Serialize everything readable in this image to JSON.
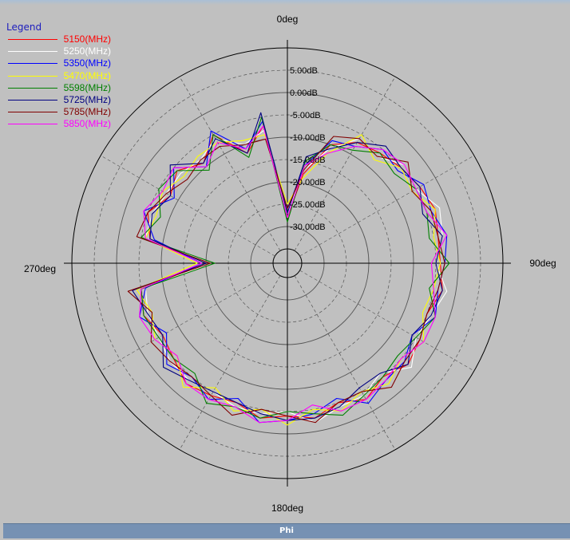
{
  "chart_data": {
    "type": "polar-line",
    "legend_title": "Legend",
    "legend_position": "top-left",
    "grid": true,
    "angle_labels": [
      "0deg",
      "90deg",
      "180deg",
      "270deg"
    ],
    "radial_labels": [
      "5.00dB",
      "0.00dB",
      "-5.00dB",
      "-10.00dB",
      "-15.00dB",
      "-20.00dB",
      "-25.00dB",
      "-30.00dB"
    ],
    "r_range_db": [
      -35,
      10
    ],
    "angles_deg": [
      0,
      10,
      20,
      30,
      40,
      50,
      60,
      70,
      80,
      90,
      100,
      110,
      120,
      130,
      140,
      150,
      160,
      170,
      180,
      190,
      200,
      210,
      220,
      230,
      240,
      250,
      260,
      270,
      280,
      290,
      300,
      310,
      320,
      330,
      340,
      350
    ],
    "series": [
      {
        "name": "5150(MHz)",
        "color": "#ff0000",
        "values": [
          -28,
          -18,
          -10,
          -7,
          -6,
          -5,
          -4,
          -3,
          -4,
          -4,
          -3,
          -5,
          -4,
          -3,
          -5,
          -3,
          -5,
          -3,
          -4,
          -3,
          -5,
          -4,
          -3,
          -5,
          -6,
          -4,
          -5,
          -20,
          -7,
          -5,
          -8,
          -6,
          -9,
          -5,
          -12,
          -7
        ]
      },
      {
        "name": "5250(MHz)",
        "color": "#ffffff",
        "values": [
          -27,
          -17,
          -11,
          -6,
          -7,
          -4,
          -5,
          -2,
          -3,
          -5,
          -2,
          -4,
          -5,
          -2,
          -6,
          -4,
          -4,
          -2,
          -5,
          -4,
          -4,
          -5,
          -4,
          -4,
          -5,
          -5,
          -6,
          -21,
          -6,
          -6,
          -7,
          -7,
          -8,
          -6,
          -10,
          -8
        ]
      },
      {
        "name": "5350(MHz)",
        "color": "#0000ff",
        "values": [
          -26,
          -16,
          -9,
          -8,
          -5,
          -6,
          -3,
          -4,
          -2,
          -3,
          -4,
          -3,
          -6,
          -4,
          -4,
          -2,
          -6,
          -4,
          -3,
          -2,
          -6,
          -3,
          -5,
          -3,
          -7,
          -3,
          -6,
          -19,
          -8,
          -4,
          -9,
          -5,
          -10,
          -4,
          -11,
          -6
        ]
      },
      {
        "name": "5470(MHz)",
        "color": "#ffff00",
        "values": [
          -25,
          -19,
          -12,
          -5,
          -8,
          -5,
          -6,
          -3,
          -5,
          -4,
          -5,
          -6,
          -3,
          -5,
          -3,
          -5,
          -3,
          -5,
          -2,
          -5,
          -3,
          -6,
          -2,
          -6,
          -4,
          -6,
          -4,
          -18,
          -6,
          -7,
          -6,
          -8,
          -7,
          -7,
          -9,
          -9
        ]
      },
      {
        "name": "5598(MHz)",
        "color": "#008000",
        "values": [
          -29,
          -15,
          -10,
          -9,
          -6,
          -7,
          -5,
          -5,
          -6,
          -2,
          -6,
          -3,
          -5,
          -6,
          -5,
          -4,
          -2,
          -4,
          -5,
          -3,
          -4,
          -2,
          -6,
          -5,
          -5,
          -4,
          -5,
          -22,
          -5,
          -8,
          -5,
          -6,
          -11,
          -5,
          -13,
          -5
        ]
      },
      {
        "name": "5725(MHz)",
        "color": "#000080",
        "values": [
          -27,
          -14,
          -11,
          -7,
          -4,
          -5,
          -4,
          -6,
          -3,
          -5,
          -3,
          -4,
          -6,
          -3,
          -6,
          -6,
          -4,
          -3,
          -3,
          -4,
          -5,
          -5,
          -4,
          -2,
          -6,
          -5,
          -3,
          -20,
          -7,
          -6,
          -8,
          -4,
          -9,
          -6,
          -12,
          -4
        ]
      },
      {
        "name": "5785(MHz)",
        "color": "#800000",
        "values": [
          -26,
          -17,
          -8,
          -6,
          -7,
          -3,
          -6,
          -4,
          -4,
          -3,
          -4,
          -5,
          -4,
          -4,
          -2,
          -5,
          -5,
          -2,
          -4,
          -5,
          -2,
          -4,
          -5,
          -4,
          -3,
          -6,
          -2,
          -21,
          -4,
          -5,
          -7,
          -9,
          -8,
          -8,
          -10,
          -10
        ]
      },
      {
        "name": "5850(MHz)",
        "color": "#ff00ff",
        "values": [
          -28,
          -16,
          -12,
          -8,
          -5,
          -4,
          -5,
          -5,
          -2,
          -6,
          -5,
          -3,
          -3,
          -5,
          -4,
          -3,
          -3,
          -6,
          -3,
          -2,
          -4,
          -3,
          -3,
          -6,
          -4,
          -3,
          -5,
          -19,
          -6,
          -4,
          -6,
          -5,
          -10,
          -7,
          -11,
          -7
        ]
      }
    ]
  },
  "footer": {
    "label": "Phi"
  },
  "colors": {
    "background": "#c0c0c0",
    "footer": "#7691b3",
    "legend_title": "#1d1dbe"
  }
}
